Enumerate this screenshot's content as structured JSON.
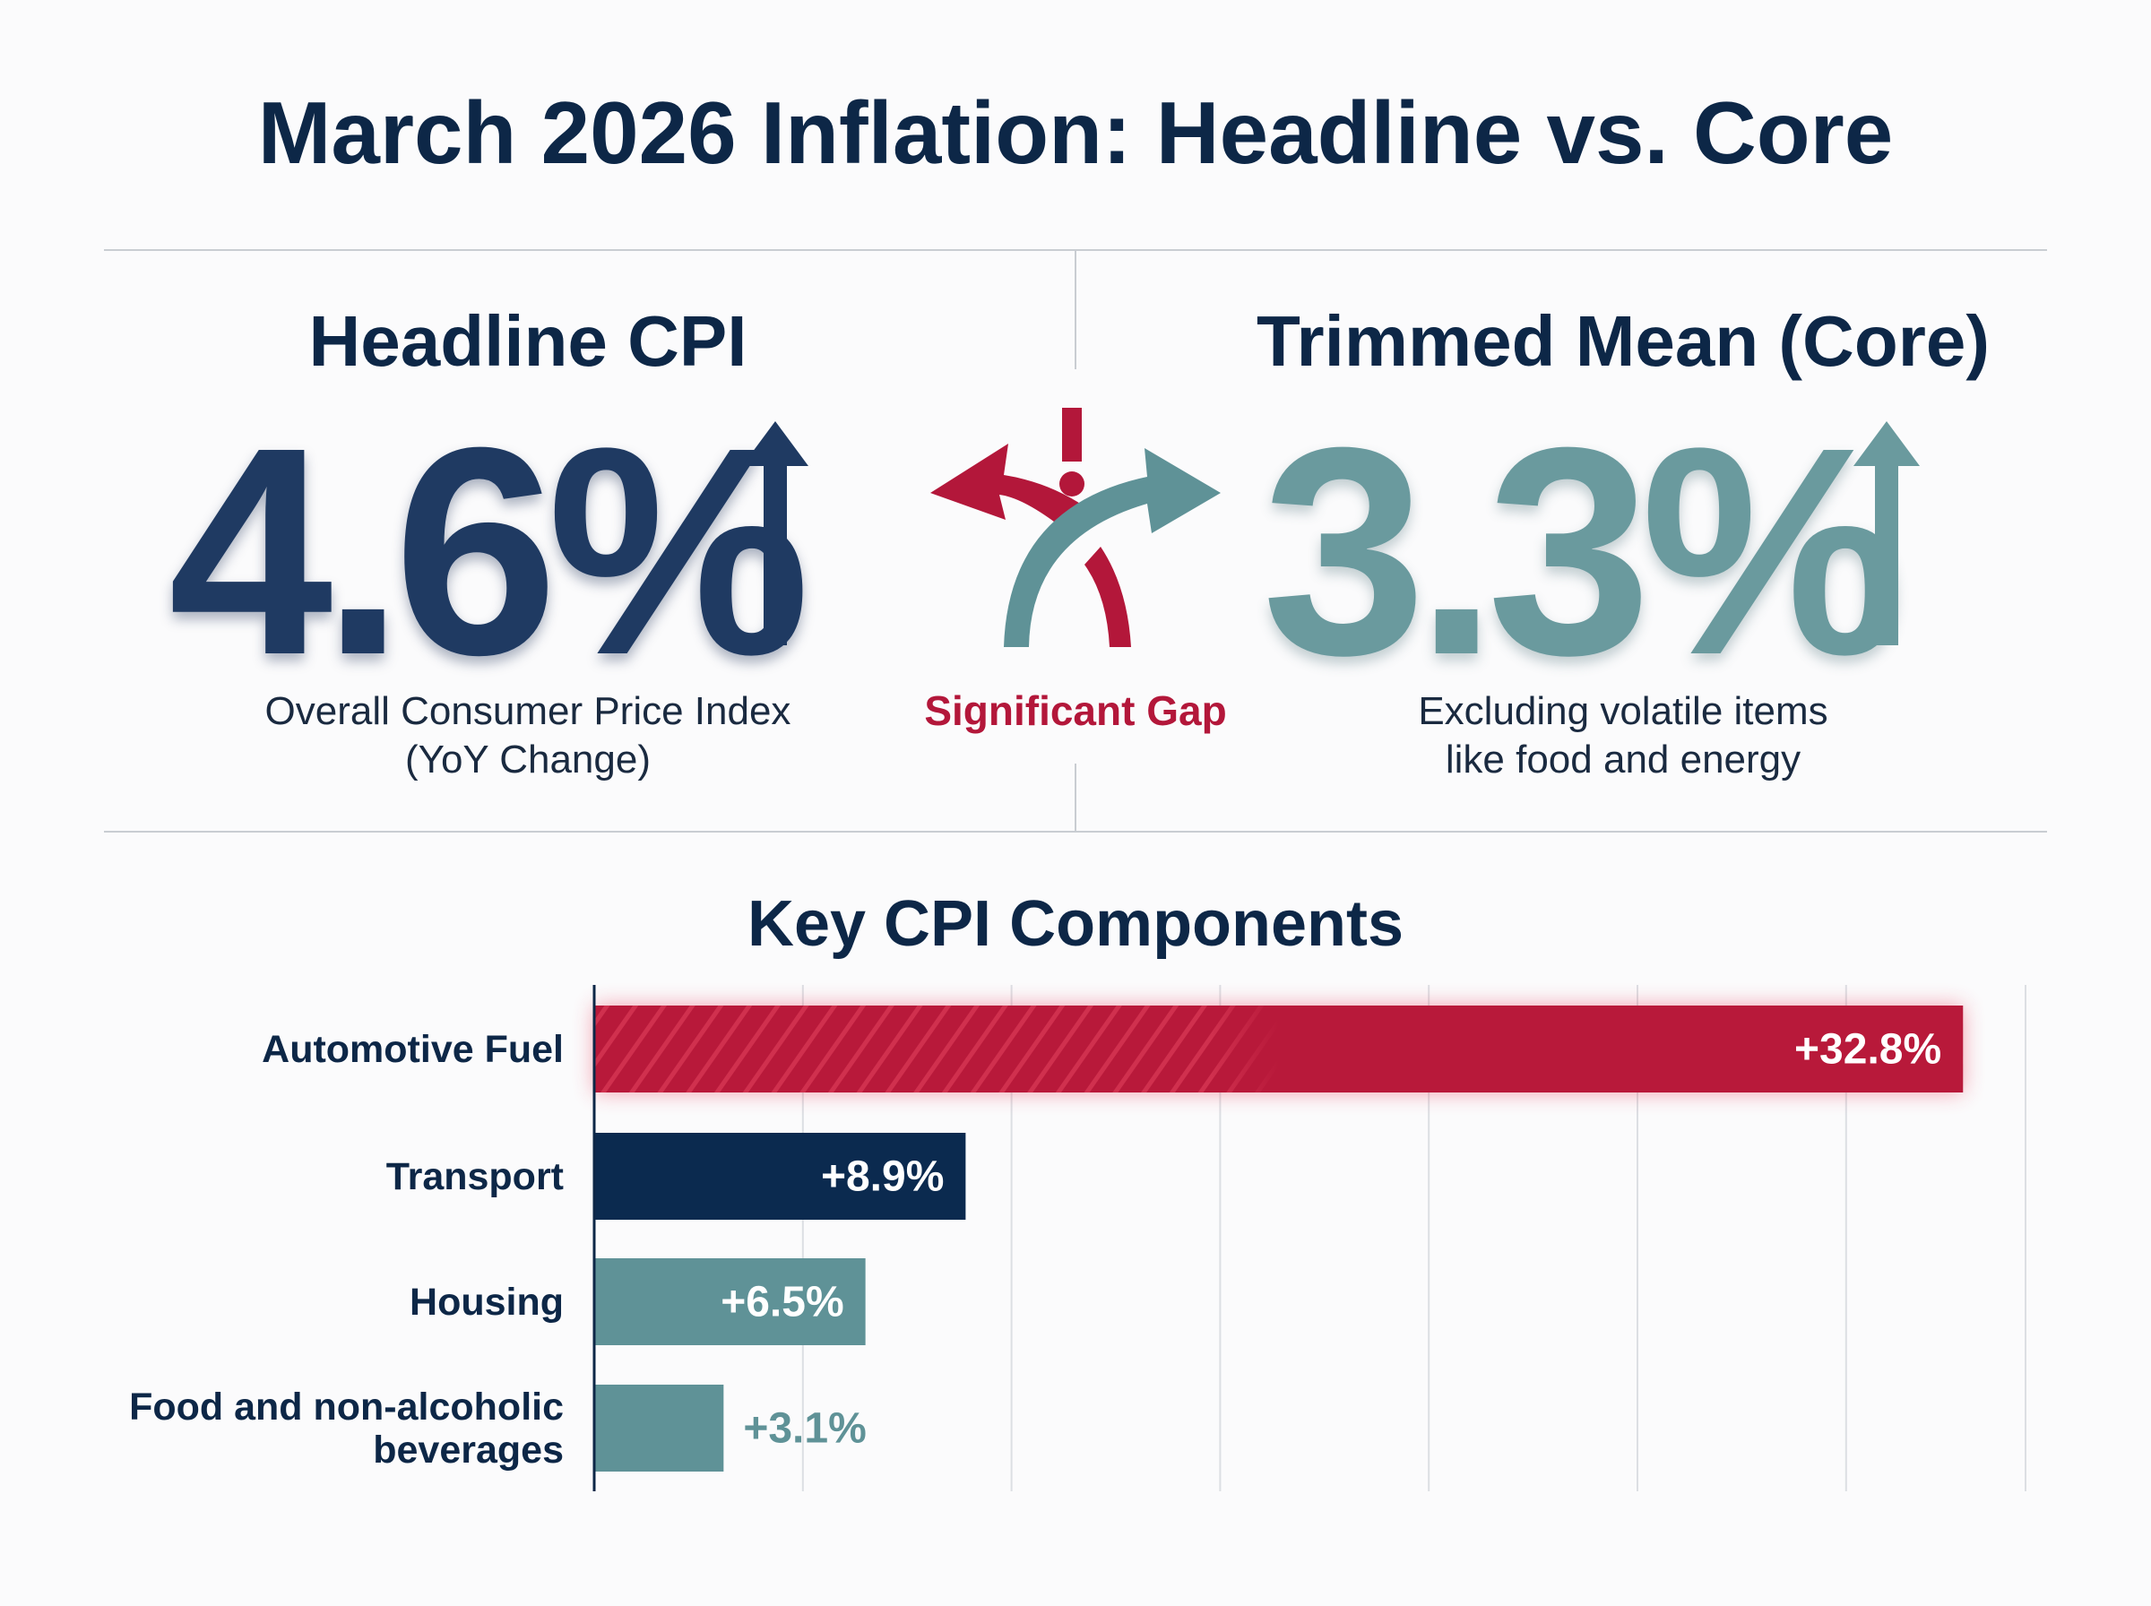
{
  "title": "March 2026 Inflation: Headline vs. Core",
  "headline": {
    "heading": "Headline CPI",
    "value": "4.6%",
    "description_line1": "Overall Consumer Price Index",
    "description_line2": "(YoY Change)",
    "icon": "arrow-up-icon"
  },
  "core": {
    "heading": "Trimmed Mean (Core)",
    "value": "3.3%",
    "description_line1": "Excluding volatile items",
    "description_line2": "like food and energy",
    "icon": "arrow-up-icon"
  },
  "gap": {
    "label": "Significant Gap",
    "icon": "diverging-arrows-warning-icon"
  },
  "colors": {
    "navy": "#0b2a4f",
    "red": "#b8193a",
    "teal": "#5f9297"
  },
  "chart_data": {
    "type": "bar",
    "orientation": "horizontal",
    "title": "Key CPI Components",
    "categories": [
      "Automotive Fuel",
      "Transport",
      "Housing",
      "Food and non-alcoholic beverages"
    ],
    "category_lines": [
      [
        "Automotive Fuel"
      ],
      [
        "Transport"
      ],
      [
        "Housing"
      ],
      [
        "Food and non-alcoholic",
        "beverages"
      ]
    ],
    "values": [
      32.8,
      8.9,
      6.5,
      3.1
    ],
    "labels": [
      "+32.8%",
      "+8.9%",
      "+6.5%",
      "+3.1%"
    ],
    "bar_colors": [
      "#b8193a",
      "#0b2a4f",
      "#5f9297",
      "#5f9297"
    ],
    "xlim": [
      0,
      34.3
    ],
    "grid": true
  }
}
